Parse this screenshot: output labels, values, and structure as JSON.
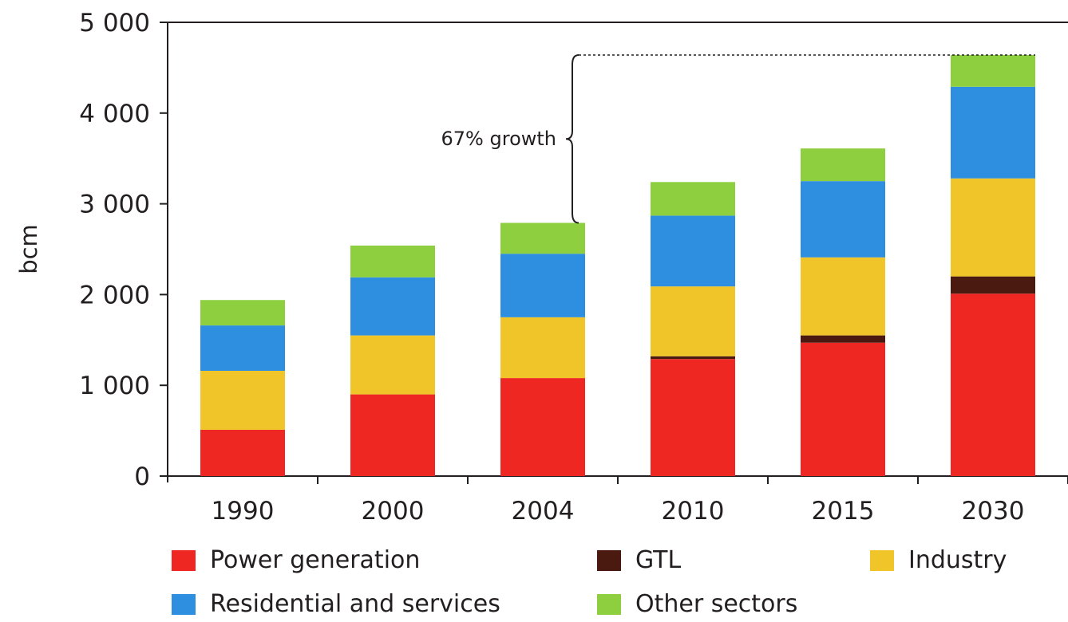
{
  "chart_data": {
    "type": "bar",
    "stacked": true,
    "ylabel": "bcm",
    "xlabel": "",
    "ylim": [
      0,
      5000
    ],
    "yticks": [
      0,
      1000,
      2000,
      3000,
      4000,
      5000
    ],
    "ytick_labels": [
      "0",
      "1 000",
      "2 000",
      "3 000",
      "4 000",
      "5 000"
    ],
    "categories": [
      "1990",
      "2000",
      "2004",
      "2010",
      "2015",
      "2030"
    ],
    "series": [
      {
        "name": "Power generation",
        "color": "#ee2722",
        "values": [
          510,
          900,
          1080,
          1290,
          1470,
          2010
        ]
      },
      {
        "name": "GTL",
        "color": "#4a1a10",
        "values": [
          0,
          0,
          0,
          30,
          80,
          190
        ]
      },
      {
        "name": "Industry",
        "color": "#f0c52a",
        "values": [
          650,
          650,
          670,
          770,
          860,
          1080
        ]
      },
      {
        "name": "Residential and services",
        "color": "#2e8fe0",
        "values": [
          500,
          640,
          700,
          780,
          840,
          1010
        ]
      },
      {
        "name": "Other sectors",
        "color": "#8dcf3f",
        "values": [
          280,
          350,
          340,
          370,
          360,
          350
        ]
      }
    ],
    "annotation": {
      "text": "67% growth",
      "from_category": "2004",
      "to_category": "2030",
      "from_value": 2790,
      "to_value": 4640
    },
    "legend_position": "bottom"
  }
}
